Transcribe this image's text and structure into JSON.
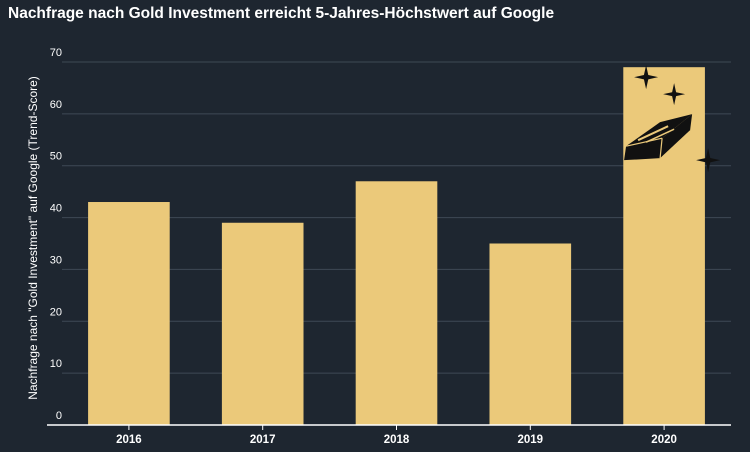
{
  "chart_data": {
    "type": "bar",
    "title": "Nachfrage nach Gold Investment erreicht 5-Jahres-Höchstwert auf Google",
    "xlabel": "",
    "ylabel": "Nachfrage nach \"Gold Investment\" auf Google (Trend-Score)",
    "categories": [
      "2016",
      "2017",
      "2018",
      "2019",
      "2020"
    ],
    "values": [
      43,
      39,
      47,
      35,
      69
    ],
    "ylim": [
      0,
      70
    ],
    "yticks": [
      0,
      10,
      20,
      30,
      40,
      50,
      60,
      70
    ],
    "grid": true,
    "legend": "none",
    "colors": {
      "background": "#1e2630",
      "bar": "#ebc97a",
      "grid": "#3f4955",
      "axis": "#ffffff",
      "text": "#ffffff",
      "icon": "#111111"
    },
    "annotations": [
      {
        "type": "icon",
        "name": "gold-bar-sparkle-icon",
        "category": "2020"
      }
    ]
  }
}
